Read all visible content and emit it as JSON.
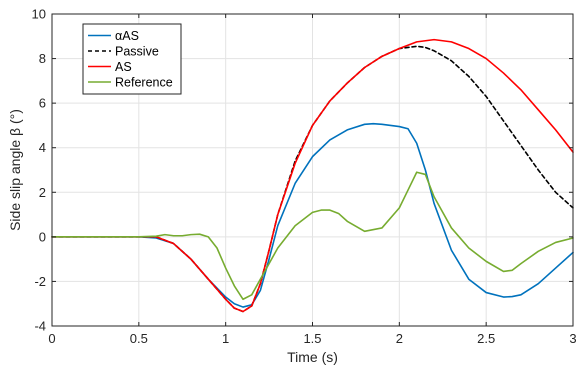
{
  "chart_data": {
    "type": "line",
    "xlabel": "Time (s)",
    "ylabel": "Side slip angle β (°)",
    "xlim": [
      0,
      3
    ],
    "ylim": [
      -4,
      10
    ],
    "xticks": [
      0,
      0.5,
      1,
      1.5,
      2,
      2.5,
      3
    ],
    "xtick_labels": [
      "0",
      "0.5",
      "1",
      "1.5",
      "2",
      "2.5",
      "3"
    ],
    "yticks": [
      -4,
      -2,
      0,
      2,
      4,
      6,
      8,
      10
    ],
    "ytick_labels": [
      "-4",
      "-2",
      "0",
      "2",
      "4",
      "6",
      "8",
      "10"
    ],
    "grid": true,
    "legend_position": "top-left",
    "series": [
      {
        "name": "αAS",
        "color": "#0072bd",
        "dash": "solid",
        "x": [
          0,
          0.5,
          0.6,
          0.7,
          0.8,
          0.9,
          1.0,
          1.05,
          1.1,
          1.15,
          1.2,
          1.25,
          1.3,
          1.4,
          1.5,
          1.6,
          1.7,
          1.8,
          1.85,
          1.9,
          2.0,
          2.05,
          2.1,
          2.15,
          2.2,
          2.3,
          2.4,
          2.5,
          2.6,
          2.65,
          2.7,
          2.8,
          2.9,
          3.0
        ],
        "y": [
          0,
          0,
          -0.05,
          -0.3,
          -1.0,
          -1.9,
          -2.7,
          -3.0,
          -3.15,
          -3.05,
          -2.4,
          -1.0,
          0.5,
          2.4,
          3.6,
          4.35,
          4.8,
          5.05,
          5.08,
          5.05,
          4.95,
          4.85,
          4.2,
          3.0,
          1.5,
          -0.6,
          -1.9,
          -2.5,
          -2.7,
          -2.68,
          -2.6,
          -2.1,
          -1.4,
          -0.7
        ]
      },
      {
        "name": "Passive",
        "color": "#000000",
        "dash": "dashed",
        "x": [
          0,
          0.5,
          0.6,
          0.7,
          0.8,
          0.9,
          1.0,
          1.05,
          1.1,
          1.15,
          1.2,
          1.25,
          1.3,
          1.4,
          1.5,
          1.6,
          1.7,
          1.8,
          1.9,
          2.0,
          2.1,
          2.15,
          2.2,
          2.3,
          2.4,
          2.5,
          2.6,
          2.7,
          2.8,
          2.9,
          3.0
        ],
        "y": [
          0,
          0,
          0.0,
          -0.3,
          -1.0,
          -1.9,
          -2.8,
          -3.2,
          -3.35,
          -3.1,
          -2.1,
          -0.6,
          1.0,
          3.4,
          5.0,
          6.1,
          6.9,
          7.6,
          8.1,
          8.45,
          8.55,
          8.5,
          8.35,
          7.9,
          7.2,
          6.3,
          5.2,
          4.1,
          3.0,
          2.0,
          1.3
        ]
      },
      {
        "name": "AS",
        "color": "#ff0000",
        "dash": "solid",
        "x": [
          0,
          0.5,
          0.6,
          0.7,
          0.8,
          0.9,
          1.0,
          1.05,
          1.1,
          1.15,
          1.2,
          1.25,
          1.3,
          1.4,
          1.5,
          1.6,
          1.7,
          1.8,
          1.9,
          2.0,
          2.1,
          2.2,
          2.3,
          2.4,
          2.5,
          2.6,
          2.7,
          2.8,
          2.9,
          3.0
        ],
        "y": [
          0,
          0,
          0.0,
          -0.3,
          -1.0,
          -1.9,
          -2.8,
          -3.2,
          -3.35,
          -3.1,
          -2.1,
          -0.6,
          1.0,
          3.3,
          5.0,
          6.1,
          6.9,
          7.6,
          8.1,
          8.45,
          8.75,
          8.85,
          8.75,
          8.45,
          8.0,
          7.35,
          6.6,
          5.7,
          4.8,
          3.8
        ]
      },
      {
        "name": "Reference",
        "color": "#77ac30",
        "dash": "solid",
        "x": [
          0,
          0.5,
          0.6,
          0.65,
          0.7,
          0.75,
          0.8,
          0.85,
          0.9,
          0.95,
          1.0,
          1.05,
          1.1,
          1.15,
          1.2,
          1.3,
          1.4,
          1.5,
          1.55,
          1.6,
          1.65,
          1.7,
          1.8,
          1.9,
          2.0,
          2.05,
          2.1,
          2.15,
          2.2,
          2.3,
          2.4,
          2.5,
          2.6,
          2.65,
          2.7,
          2.8,
          2.9,
          3.0
        ],
        "y": [
          0,
          0,
          0.03,
          0.1,
          0.05,
          0.05,
          0.1,
          0.12,
          0.0,
          -0.5,
          -1.4,
          -2.2,
          -2.8,
          -2.6,
          -1.9,
          -0.5,
          0.5,
          1.1,
          1.2,
          1.2,
          1.05,
          0.7,
          0.25,
          0.4,
          1.3,
          2.1,
          2.9,
          2.8,
          1.8,
          0.4,
          -0.5,
          -1.1,
          -1.55,
          -1.5,
          -1.2,
          -0.65,
          -0.25,
          -0.05
        ]
      }
    ]
  }
}
